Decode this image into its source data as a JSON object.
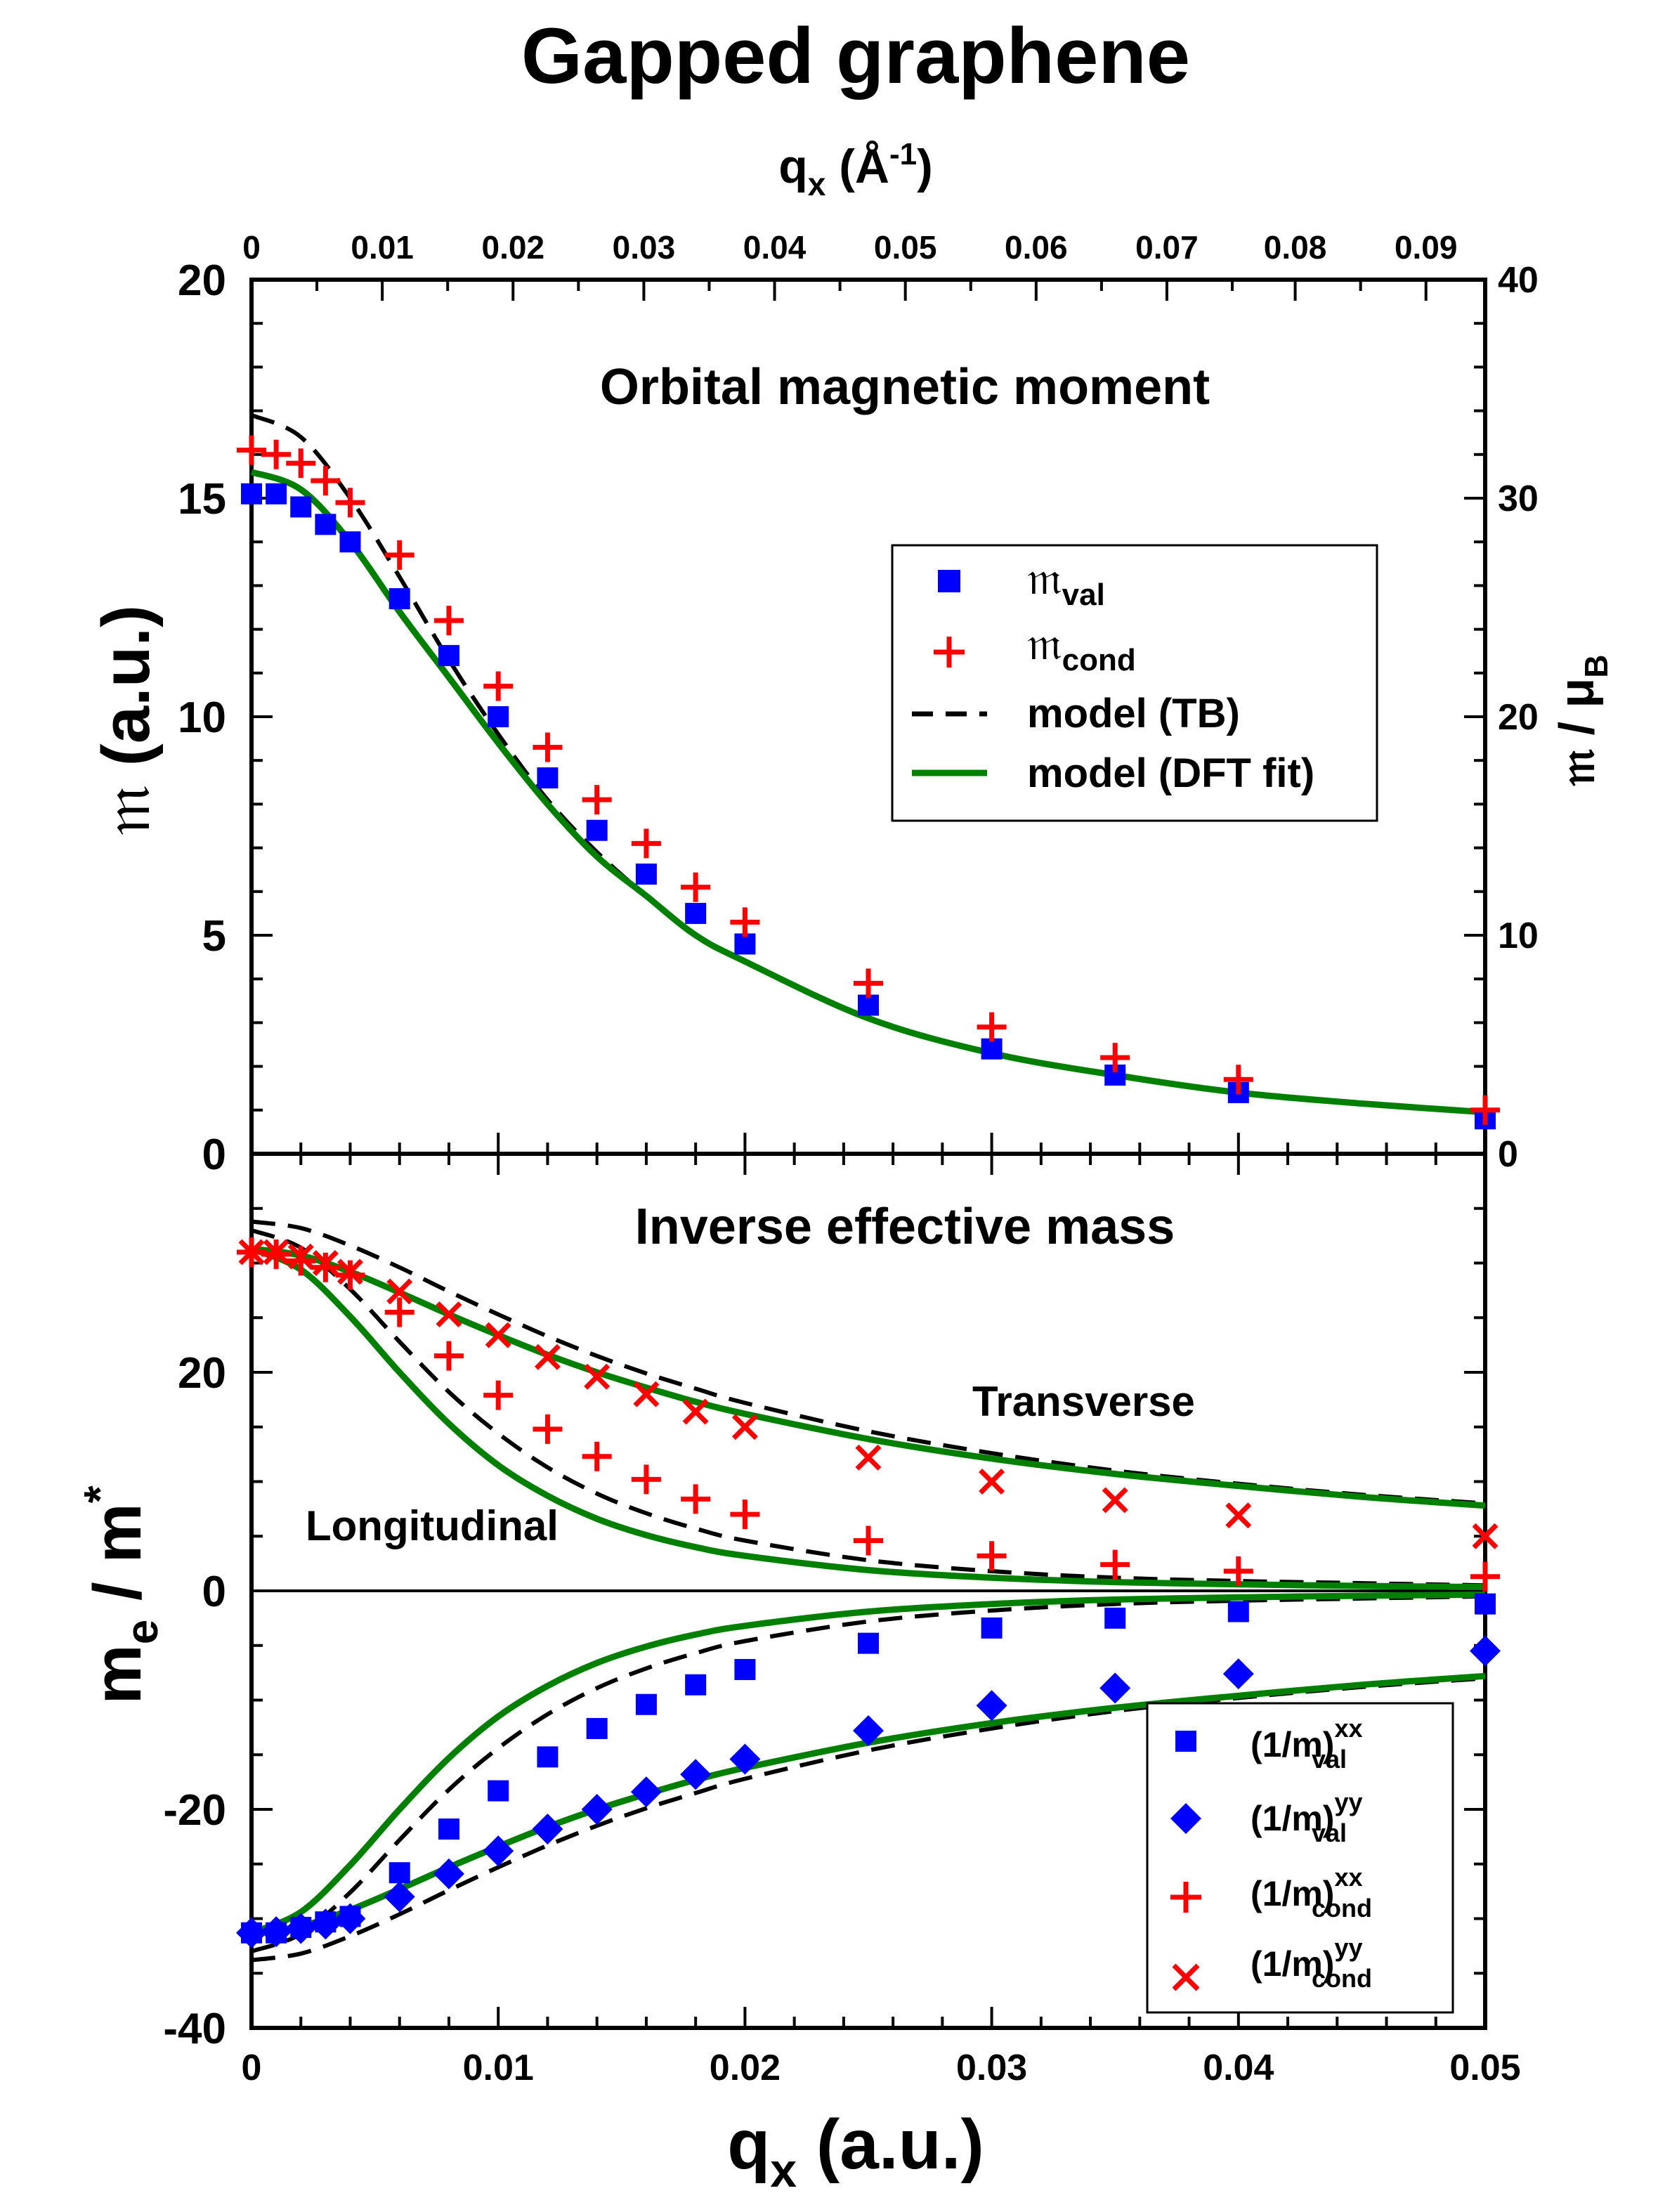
{
  "title": "Gapped graphene",
  "top_axis": {
    "label": "q",
    "label_sub": "x",
    "label_unit_open": " (Å",
    "label_unit_sup": "-1",
    "label_unit_close": ")",
    "ticks": [
      {
        "label": "0",
        "q_au": 0
      },
      {
        "label": "0.01",
        "q_au": 0.0053
      },
      {
        "label": "0.02",
        "q_au": 0.0106
      },
      {
        "label": "0.03",
        "q_au": 0.0159
      },
      {
        "label": "0.04",
        "q_au": 0.0212
      },
      {
        "label": "0.05",
        "q_au": 0.0265
      },
      {
        "label": "0.06",
        "q_au": 0.0318
      },
      {
        "label": "0.07",
        "q_au": 0.0371
      },
      {
        "label": "0.08",
        "q_au": 0.0423
      },
      {
        "label": "0.09",
        "q_au": 0.0476
      }
    ]
  },
  "bottom_axis": {
    "label": "q",
    "label_sub": "x",
    "label_unit": " (a.u.)",
    "ticks": [
      "0",
      "0.01",
      "0.02",
      "0.03",
      "0.04",
      "0.05"
    ],
    "tick_values": [
      0,
      0.01,
      0.02,
      0.03,
      0.04,
      0.05
    ]
  },
  "chart_data": [
    {
      "type": "scatter",
      "title": "Orbital magnetic moment",
      "xlabel": "q_x (a.u.)",
      "ylabel": "𝔪 (a.u.)",
      "ylabel_main": "𝔪",
      "ylabel_unit": " (a.u.)",
      "ylabel_right_main": "𝔪 / μ",
      "ylabel_right_sub": "B",
      "xlim": [
        0,
        0.05
      ],
      "ylim": [
        0,
        20
      ],
      "yticks": [
        "0",
        "5",
        "10",
        "15",
        "20"
      ],
      "ytick_values": [
        0,
        5,
        10,
        15,
        20
      ],
      "y2ticks": [
        "0",
        "10",
        "20",
        "30",
        "40"
      ],
      "y2tick_values": [
        0,
        10,
        20,
        30,
        40
      ],
      "legend_position": "upper-right",
      "legend": [
        {
          "name": "𝔪",
          "sub": "val",
          "marker": "square",
          "color": "#0000ff"
        },
        {
          "name": "𝔪",
          "sub": "cond",
          "marker": "plus",
          "color": "#ff0000"
        },
        {
          "name": "model (TB)",
          "marker": "dashed-line",
          "color": "#000000"
        },
        {
          "name": "model (DFT fit)",
          "marker": "solid-line",
          "color": "#008000"
        }
      ],
      "series": [
        {
          "name": "m_val",
          "marker": "square",
          "color": "#0000ff",
          "x": [
            0,
            0.001,
            0.002,
            0.003,
            0.004,
            0.006,
            0.008,
            0.01,
            0.012,
            0.014,
            0.016,
            0.018,
            0.02,
            0.025,
            0.03,
            0.035,
            0.04,
            0.05
          ],
          "y": [
            15.1,
            15.1,
            14.8,
            14.4,
            14.0,
            12.7,
            11.4,
            10.0,
            8.6,
            7.4,
            6.4,
            5.5,
            4.8,
            3.4,
            2.4,
            1.8,
            1.4,
            0.8
          ]
        },
        {
          "name": "m_cond",
          "marker": "plus",
          "color": "#ff0000",
          "x": [
            0,
            0.001,
            0.002,
            0.003,
            0.004,
            0.006,
            0.008,
            0.01,
            0.012,
            0.014,
            0.016,
            0.018,
            0.02,
            0.025,
            0.03,
            0.035,
            0.04,
            0.05
          ],
          "y": [
            16.1,
            16.0,
            15.8,
            15.4,
            14.9,
            13.7,
            12.2,
            10.7,
            9.3,
            8.1,
            7.1,
            6.1,
            5.3,
            3.9,
            2.9,
            2.2,
            1.7,
            1.0
          ]
        },
        {
          "name": "model (TB)",
          "style": "dashed",
          "color": "#000000",
          "x": [
            0,
            0.002,
            0.004,
            0.006,
            0.008,
            0.01,
            0.012,
            0.014,
            0.016,
            0.018,
            0.02,
            0.025,
            0.03,
            0.035,
            0.04,
            0.045,
            0.05
          ],
          "y": [
            16.9,
            16.4,
            15.0,
            13.2,
            11.3,
            9.6,
            8.1,
            6.9,
            5.9,
            5.0,
            4.4,
            3.1,
            2.3,
            1.8,
            1.4,
            1.15,
            0.95
          ]
        },
        {
          "name": "model (DFT fit)",
          "style": "solid",
          "color": "#008000",
          "x": [
            0,
            0.002,
            0.004,
            0.006,
            0.008,
            0.01,
            0.012,
            0.014,
            0.016,
            0.018,
            0.02,
            0.025,
            0.03,
            0.035,
            0.04,
            0.045,
            0.05
          ],
          "y": [
            15.6,
            15.2,
            14.0,
            12.4,
            10.9,
            9.4,
            8.0,
            6.8,
            5.9,
            5.0,
            4.4,
            3.1,
            2.3,
            1.8,
            1.4,
            1.15,
            0.95
          ]
        }
      ]
    },
    {
      "type": "scatter",
      "title": "Inverse effective mass",
      "xlabel": "q_x (a.u.)",
      "ylabel": "m_e / m*",
      "ylabel_main": "m",
      "ylabel_sub": "e",
      "ylabel_mid": " / m",
      "ylabel_sup": "*",
      "xlim": [
        0,
        0.05
      ],
      "ylim": [
        -40,
        40
      ],
      "yticks": [
        "-40",
        "-20",
        "0",
        "20"
      ],
      "ytick_values": [
        -40,
        -20,
        0,
        20
      ],
      "annotations": {
        "transverse": "Transverse",
        "longitudinal": "Longitudinal"
      },
      "legend_position": "lower-right",
      "legend": [
        {
          "name": "(1/m)",
          "sup": "xx",
          "sub": "val",
          "marker": "square",
          "color": "#0000ff"
        },
        {
          "name": "(1/m)",
          "sup": "yy",
          "sub": "val",
          "marker": "diamond",
          "color": "#0000ff"
        },
        {
          "name": "(1/m)",
          "sup": "xx",
          "sub": "cond",
          "marker": "plus",
          "color": "#ff0000"
        },
        {
          "name": "(1/m)",
          "sup": "yy",
          "sub": "cond",
          "marker": "cross",
          "color": "#ff0000"
        }
      ],
      "series": [
        {
          "name": "(1/m)^xx_val",
          "marker": "square",
          "color": "#0000ff",
          "x": [
            0,
            0.001,
            0.002,
            0.003,
            0.004,
            0.006,
            0.008,
            0.01,
            0.012,
            0.014,
            0.016,
            0.018,
            0.02,
            0.025,
            0.03,
            0.035,
            0.04,
            0.05
          ],
          "y": [
            -31.3,
            -31.3,
            -30.8,
            -30.3,
            -29.8,
            -25.8,
            -21.8,
            -18.3,
            -15.2,
            -12.6,
            -10.4,
            -8.6,
            -7.2,
            -4.8,
            -3.4,
            -2.5,
            -1.9,
            -1.2
          ]
        },
        {
          "name": "(1/m)^yy_val",
          "marker": "diamond",
          "color": "#0000ff",
          "x": [
            0,
            0.001,
            0.002,
            0.003,
            0.004,
            0.006,
            0.008,
            0.01,
            0.012,
            0.014,
            0.016,
            0.018,
            0.02,
            0.025,
            0.03,
            0.035,
            0.04,
            0.05
          ],
          "y": [
            -31.3,
            -31.2,
            -30.9,
            -30.5,
            -30.0,
            -28.0,
            -25.9,
            -23.8,
            -21.8,
            -20.0,
            -18.4,
            -16.8,
            -15.4,
            -12.8,
            -10.5,
            -8.9,
            -7.6,
            -5.5
          ]
        },
        {
          "name": "(1/m)^xx_cond",
          "marker": "plus",
          "color": "#ff0000",
          "x": [
            0,
            0.001,
            0.002,
            0.003,
            0.004,
            0.006,
            0.008,
            0.01,
            0.012,
            0.014,
            0.016,
            0.018,
            0.02,
            0.025,
            0.03,
            0.035,
            0.04,
            0.05
          ],
          "y": [
            31.0,
            30.8,
            30.2,
            29.6,
            28.9,
            25.5,
            21.5,
            17.9,
            14.8,
            12.3,
            10.2,
            8.4,
            7.0,
            4.6,
            3.2,
            2.4,
            1.8,
            1.3
          ]
        },
        {
          "name": "(1/m)^yy_cond",
          "marker": "cross",
          "color": "#ff0000",
          "x": [
            0,
            0.001,
            0.002,
            0.003,
            0.004,
            0.006,
            0.008,
            0.01,
            0.012,
            0.014,
            0.016,
            0.018,
            0.02,
            0.025,
            0.03,
            0.035,
            0.04,
            0.05
          ],
          "y": [
            31.0,
            31.0,
            30.6,
            30.0,
            29.2,
            27.4,
            25.3,
            23.4,
            21.4,
            19.6,
            18.0,
            16.4,
            15.0,
            12.2,
            10.0,
            8.3,
            6.9,
            5.0
          ]
        },
        {
          "name": "TB transverse (cond)",
          "style": "dashed",
          "color": "#000000",
          "x": [
            0,
            0.002,
            0.004,
            0.006,
            0.008,
            0.01,
            0.012,
            0.014,
            0.016,
            0.018,
            0.02,
            0.025,
            0.03,
            0.035,
            0.04,
            0.045,
            0.05
          ],
          "y": [
            33.8,
            33.2,
            31.6,
            29.6,
            27.4,
            25.3,
            23.3,
            21.5,
            19.9,
            18.5,
            17.2,
            14.6,
            12.6,
            11.0,
            9.8,
            8.8,
            8.0
          ]
        },
        {
          "name": "TB longitudinal (cond)",
          "style": "dashed",
          "color": "#000000",
          "x": [
            0,
            0.002,
            0.004,
            0.006,
            0.008,
            0.01,
            0.012,
            0.014,
            0.016,
            0.018,
            0.02,
            0.025,
            0.03,
            0.035,
            0.04,
            0.045,
            0.05
          ],
          "y": [
            33.0,
            31.4,
            27.6,
            22.8,
            18.2,
            14.4,
            11.3,
            8.9,
            7.1,
            5.7,
            4.6,
            2.8,
            1.8,
            1.2,
            0.9,
            0.7,
            0.5
          ]
        },
        {
          "name": "DFT fit transverse (cond)",
          "style": "solid",
          "color": "#008000",
          "x": [
            0,
            0.002,
            0.004,
            0.006,
            0.008,
            0.01,
            0.012,
            0.014,
            0.016,
            0.018,
            0.02,
            0.025,
            0.03,
            0.035,
            0.04,
            0.045,
            0.05
          ],
          "y": [
            31.3,
            30.7,
            29.2,
            27.3,
            25.3,
            23.4,
            21.6,
            20.0,
            18.6,
            17.3,
            16.2,
            13.9,
            12.1,
            10.7,
            9.6,
            8.6,
            7.8
          ]
        },
        {
          "name": "DFT fit longitudinal (cond)",
          "style": "solid",
          "color": "#008000",
          "x": [
            0,
            0.002,
            0.004,
            0.006,
            0.008,
            0.01,
            0.012,
            0.014,
            0.016,
            0.018,
            0.02,
            0.025,
            0.03,
            0.035,
            0.04,
            0.045,
            0.05
          ],
          "y": [
            31.3,
            29.4,
            25.1,
            20.0,
            15.3,
            11.5,
            8.7,
            6.6,
            5.1,
            4.0,
            3.2,
            1.9,
            1.2,
            0.8,
            0.6,
            0.45,
            0.35
          ]
        },
        {
          "name": "TB transverse (val)",
          "style": "dashed",
          "color": "#000000",
          "x": [
            0,
            0.002,
            0.004,
            0.006,
            0.008,
            0.01,
            0.012,
            0.014,
            0.016,
            0.018,
            0.02,
            0.025,
            0.03,
            0.035,
            0.04,
            0.045,
            0.05
          ],
          "y": [
            -33.8,
            -33.2,
            -31.6,
            -29.6,
            -27.4,
            -25.3,
            -23.3,
            -21.5,
            -19.9,
            -18.5,
            -17.2,
            -14.6,
            -12.6,
            -11.0,
            -9.8,
            -8.8,
            -8.0
          ]
        },
        {
          "name": "TB longitudinal (val)",
          "style": "dashed",
          "color": "#000000",
          "x": [
            0,
            0.002,
            0.004,
            0.006,
            0.008,
            0.01,
            0.012,
            0.014,
            0.016,
            0.018,
            0.02,
            0.025,
            0.03,
            0.035,
            0.04,
            0.045,
            0.05
          ],
          "y": [
            -33.0,
            -31.4,
            -27.6,
            -22.8,
            -18.2,
            -14.4,
            -11.3,
            -8.9,
            -7.1,
            -5.7,
            -4.6,
            -2.8,
            -1.8,
            -1.2,
            -0.9,
            -0.7,
            -0.5
          ]
        },
        {
          "name": "DFT fit transverse (val)",
          "style": "solid",
          "color": "#008000",
          "x": [
            0,
            0.002,
            0.004,
            0.006,
            0.008,
            0.01,
            0.012,
            0.014,
            0.016,
            0.018,
            0.02,
            0.025,
            0.03,
            0.035,
            0.04,
            0.045,
            0.05
          ],
          "y": [
            -31.3,
            -30.7,
            -29.2,
            -27.3,
            -25.3,
            -23.4,
            -21.6,
            -20.0,
            -18.6,
            -17.3,
            -16.2,
            -13.9,
            -12.1,
            -10.7,
            -9.6,
            -8.6,
            -7.8
          ]
        },
        {
          "name": "DFT fit longitudinal (val)",
          "style": "solid",
          "color": "#008000",
          "x": [
            0,
            0.002,
            0.004,
            0.006,
            0.008,
            0.01,
            0.012,
            0.014,
            0.016,
            0.018,
            0.02,
            0.025,
            0.03,
            0.035,
            0.04,
            0.045,
            0.05
          ],
          "y": [
            -31.3,
            -29.4,
            -25.1,
            -20.0,
            -15.3,
            -11.5,
            -8.7,
            -6.6,
            -5.1,
            -4.0,
            -3.2,
            -1.9,
            -1.2,
            -0.8,
            -0.6,
            -0.45,
            -0.35
          ]
        }
      ]
    }
  ]
}
